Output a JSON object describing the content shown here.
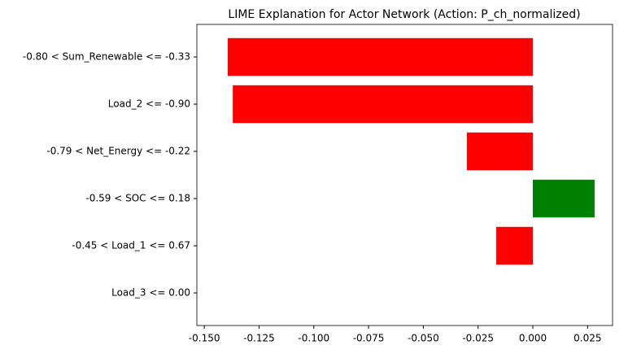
{
  "chart_data": {
    "type": "barh",
    "title": "LIME Explanation for Actor Network (Action: P_ch_normalized)",
    "categories": [
      "-0.80 < Sum_Renewable <= -0.33",
      "Load_2 <= -0.90",
      "-0.79 < Net_Energy <= -0.22",
      "-0.59 < SOC <= 0.18",
      "-0.45 < Load_1 <= 0.67",
      "Load_3 <= 0.00"
    ],
    "values": [
      -0.1393,
      -0.137,
      -0.0301,
      0.0282,
      -0.0167,
      0
    ],
    "colors": [
      "#ff0000",
      "#ff0000",
      "#ff0000",
      "#008000",
      "#ff0000",
      "#ff0000"
    ],
    "xlim": [
      -0.1534,
      0.0364
    ],
    "xticks": [
      {
        "value": -0.15,
        "label": "-0.150"
      },
      {
        "value": -0.125,
        "label": "-0.125"
      },
      {
        "value": -0.1,
        "label": "-0.100"
      },
      {
        "value": -0.075,
        "label": "-0.075"
      },
      {
        "value": -0.05,
        "label": "-0.050"
      },
      {
        "value": -0.025,
        "label": "-0.025"
      },
      {
        "value": 0,
        "label": "0.000"
      },
      {
        "value": 0.025,
        "label": "0.025"
      }
    ],
    "grid": false
  }
}
